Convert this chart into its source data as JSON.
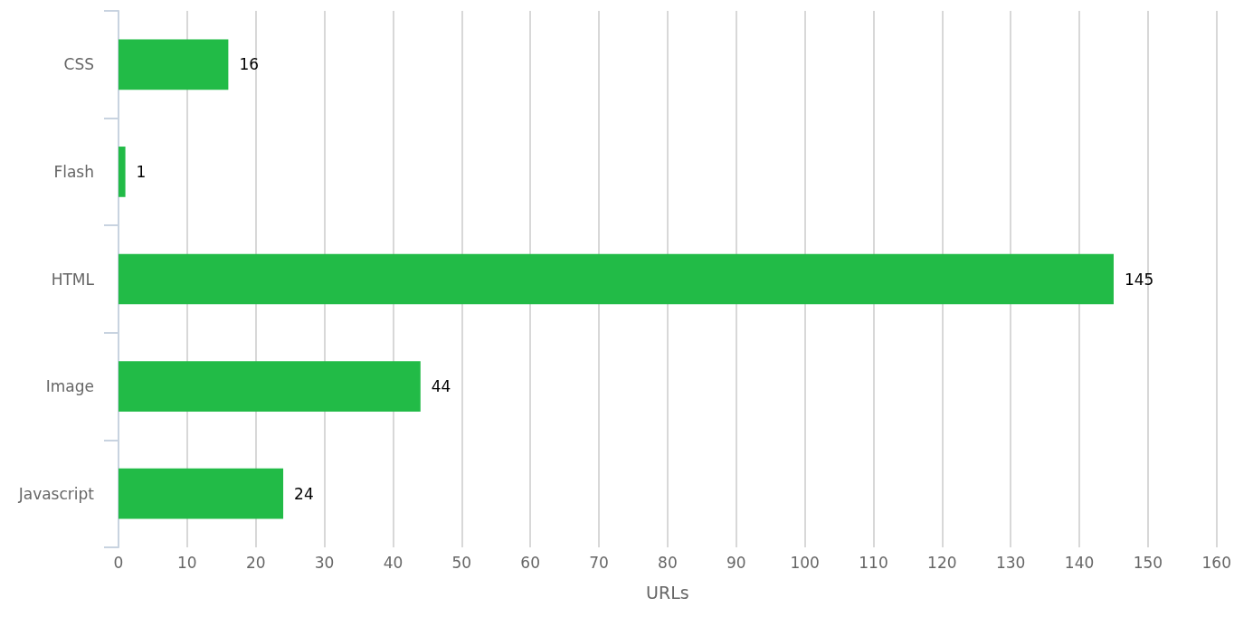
{
  "chart_data": {
    "type": "bar",
    "orientation": "horizontal",
    "xlabel": "URLs",
    "categories": [
      "CSS",
      "Flash",
      "HTML",
      "Image",
      "Javascript"
    ],
    "values": [
      16,
      1,
      145,
      44,
      24
    ],
    "color": "#22bb47",
    "xlim": [
      0,
      160
    ],
    "xticks": [
      0,
      10,
      20,
      30,
      40,
      50,
      60,
      70,
      80,
      90,
      100,
      110,
      120,
      130,
      140,
      150,
      160
    ],
    "grid": "x",
    "data_labels": true
  }
}
